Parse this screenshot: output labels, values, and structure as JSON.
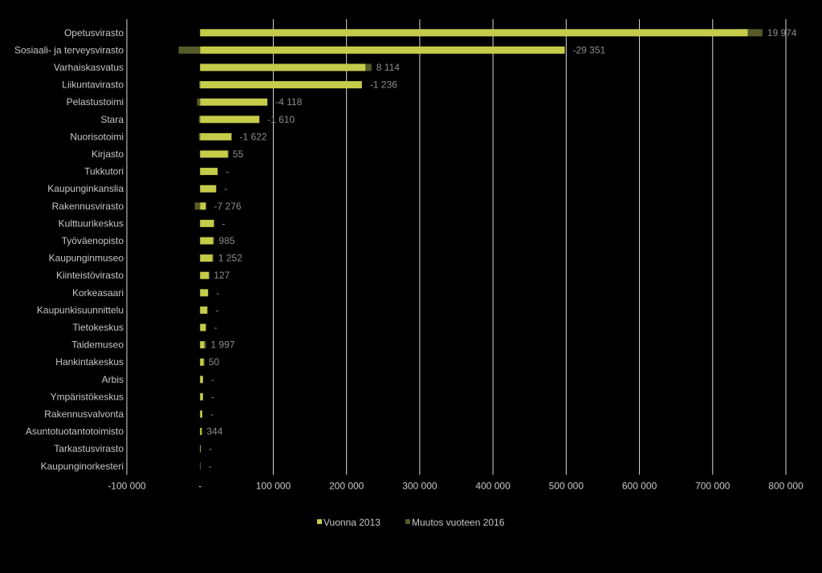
{
  "chart_data": {
    "type": "bar",
    "orientation": "horizontal",
    "stacked": true,
    "categories": [
      "Opetusvirasto",
      "Sosiaali- ja terveysvirasto",
      "Varhaiskasvatus",
      "Liikuntavirasto",
      "Pelastustoimi",
      "Stara",
      "Nuorisotoimi",
      "Kirjasto",
      "Tukkutori",
      "Kaupunginkanslia",
      "Rakennusvirasto",
      "Kulttuurikeskus",
      "Työväenopisto",
      "Kaupunginmuseo",
      "Kiinteistövirasto",
      "Korkeasaari",
      "Kaupunkisuunnittelu",
      "Tietokeskus",
      "Taidemuseo",
      "Hankintakeskus",
      "Arbis",
      "Ympäristökeskus",
      "Rakennusvalvonta",
      "Asuntotuotantotoimisto",
      "Tarkastusvirasto",
      "Kaupunginorkesteri"
    ],
    "series": [
      {
        "name": "Vuonna 2013",
        "color": "#c5cc4a",
        "values": [
          748000,
          498000,
          226000,
          221000,
          92000,
          81000,
          43000,
          38000,
          24000,
          22000,
          8000,
          19000,
          18000,
          17000,
          12000,
          11000,
          10000,
          8000,
          6000,
          5000,
          4000,
          4000,
          3000,
          2000,
          1000,
          500
        ]
      },
      {
        "name": "Muutos vuoteen 2016",
        "color": "#555a28",
        "values": [
          19974,
          -29351,
          8114,
          -1236,
          -4118,
          -1610,
          -1622,
          55,
          0,
          0,
          -7276,
          0,
          985,
          1252,
          127,
          0,
          0,
          0,
          1997,
          50,
          0,
          0,
          0,
          344,
          0,
          0
        ]
      }
    ],
    "data_labels": [
      "19 974",
      "-29 351",
      "8 114",
      "-1 236",
      "-4 118",
      "-1 610",
      "-1 622",
      "55",
      "-",
      "-",
      "-7 276",
      "-",
      "985",
      "1 252",
      "127",
      "-",
      "-",
      "-",
      "1 997",
      "50",
      "-",
      "-",
      "-",
      "344",
      "-",
      "-"
    ],
    "xlim": [
      -100000,
      800000
    ],
    "xticks": [
      -100000,
      0,
      100000,
      200000,
      300000,
      400000,
      500000,
      600000,
      700000,
      800000
    ],
    "xtick_labels": [
      "-100 000",
      "-",
      "100 000",
      "200 000",
      "300 000",
      "400 000",
      "500 000",
      "600 000",
      "700 000",
      "800 000"
    ],
    "grid": "vertical",
    "legend_position": "bottom",
    "title": "",
    "xlabel": "",
    "ylabel": ""
  }
}
